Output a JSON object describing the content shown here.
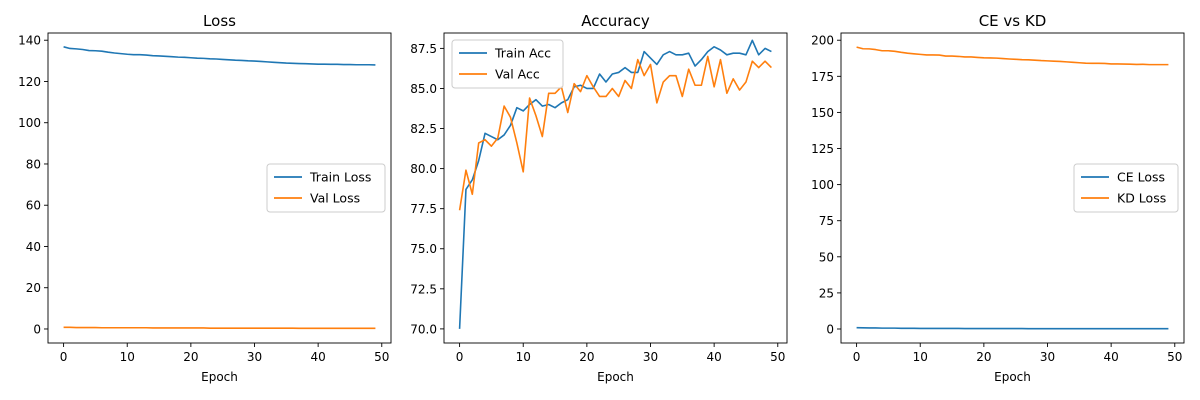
{
  "chart_data": [
    {
      "type": "line",
      "title": "Loss",
      "xlabel": "Epoch",
      "ylabel": "",
      "xlim": [
        -2.45,
        51.45
      ],
      "ylim": [
        -6.8,
        143.5
      ],
      "xticks": [
        0,
        10,
        20,
        30,
        40,
        50
      ],
      "xtick_labels": [
        "0",
        "10",
        "20",
        "30",
        "40",
        "50"
      ],
      "yticks": [
        0,
        20,
        40,
        60,
        80,
        100,
        120,
        140
      ],
      "ytick_labels": [
        "0",
        "20",
        "40",
        "60",
        "80",
        "100",
        "120",
        "140"
      ],
      "legend_placement": "center-right",
      "grid": false,
      "series": [
        {
          "name": "Train Loss",
          "color": "#1f77b4",
          "x": [
            0,
            1,
            2,
            3,
            4,
            5,
            6,
            7,
            8,
            9,
            10,
            11,
            12,
            13,
            14,
            15,
            16,
            17,
            18,
            19,
            20,
            21,
            22,
            23,
            24,
            25,
            26,
            27,
            28,
            29,
            30,
            31,
            32,
            33,
            34,
            35,
            36,
            37,
            38,
            39,
            40,
            41,
            42,
            43,
            44,
            45,
            46,
            47,
            48,
            49
          ],
          "values": [
            136.8,
            136.0,
            135.8,
            135.5,
            135.0,
            134.9,
            134.7,
            134.2,
            133.8,
            133.5,
            133.2,
            133.0,
            133.0,
            132.8,
            132.5,
            132.4,
            132.2,
            132.0,
            131.8,
            131.7,
            131.5,
            131.3,
            131.2,
            131.0,
            130.9,
            130.7,
            130.5,
            130.3,
            130.2,
            130.0,
            129.9,
            129.7,
            129.5,
            129.3,
            129.1,
            128.9,
            128.8,
            128.7,
            128.6,
            128.5,
            128.4,
            128.4,
            128.3,
            128.3,
            128.2,
            128.2,
            128.1,
            128.1,
            128.1,
            128.0
          ]
        },
        {
          "name": "Val Loss",
          "color": "#ff7f0e",
          "x": [
            0,
            1,
            2,
            3,
            4,
            5,
            6,
            7,
            8,
            9,
            10,
            11,
            12,
            13,
            14,
            15,
            16,
            17,
            18,
            19,
            20,
            21,
            22,
            23,
            24,
            25,
            26,
            27,
            28,
            29,
            30,
            31,
            32,
            33,
            34,
            35,
            36,
            37,
            38,
            39,
            40,
            41,
            42,
            43,
            44,
            45,
            46,
            47,
            48,
            49
          ],
          "values": [
            0.8,
            0.8,
            0.7,
            0.7,
            0.7,
            0.7,
            0.6,
            0.6,
            0.6,
            0.6,
            0.6,
            0.6,
            0.6,
            0.6,
            0.5,
            0.5,
            0.5,
            0.5,
            0.5,
            0.5,
            0.5,
            0.5,
            0.5,
            0.4,
            0.4,
            0.4,
            0.4,
            0.4,
            0.4,
            0.4,
            0.4,
            0.4,
            0.4,
            0.4,
            0.4,
            0.4,
            0.4,
            0.3,
            0.3,
            0.3,
            0.3,
            0.3,
            0.3,
            0.3,
            0.3,
            0.3,
            0.3,
            0.3,
            0.3,
            0.3
          ]
        }
      ]
    },
    {
      "type": "line",
      "title": "Accuracy",
      "xlabel": "Epoch",
      "ylabel": "",
      "xlim": [
        -2.45,
        51.45
      ],
      "ylim": [
        69.12,
        88.46
      ],
      "xticks": [
        0,
        10,
        20,
        30,
        40,
        50
      ],
      "xtick_labels": [
        "0",
        "10",
        "20",
        "30",
        "40",
        "50"
      ],
      "yticks": [
        70.0,
        72.5,
        75.0,
        77.5,
        80.0,
        82.5,
        85.0,
        87.5
      ],
      "ytick_labels": [
        "70.0",
        "72.5",
        "75.0",
        "77.5",
        "80.0",
        "82.5",
        "85.0",
        "87.5"
      ],
      "legend_placement": "upper-left",
      "grid": false,
      "series": [
        {
          "name": "Train Acc",
          "color": "#1f77b4",
          "x": [
            0,
            1,
            2,
            3,
            4,
            5,
            6,
            7,
            8,
            9,
            10,
            11,
            12,
            13,
            14,
            15,
            16,
            17,
            18,
            19,
            20,
            21,
            22,
            23,
            24,
            25,
            26,
            27,
            28,
            29,
            30,
            31,
            32,
            33,
            34,
            35,
            36,
            37,
            38,
            39,
            40,
            41,
            42,
            43,
            44,
            45,
            46,
            47,
            48,
            49
          ],
          "values": [
            70.0,
            78.7,
            79.3,
            80.5,
            82.2,
            82.0,
            81.8,
            82.1,
            82.7,
            83.8,
            83.6,
            84.0,
            84.3,
            83.9,
            84.0,
            83.8,
            84.1,
            84.3,
            85.1,
            85.2,
            85.0,
            85.0,
            85.9,
            85.4,
            85.9,
            86.0,
            86.3,
            86.0,
            86.0,
            87.3,
            86.9,
            86.5,
            87.1,
            87.3,
            87.1,
            87.1,
            87.2,
            86.4,
            86.8,
            87.3,
            87.6,
            87.4,
            87.1,
            87.2,
            87.2,
            87.1,
            88.0,
            87.1,
            87.5,
            87.3
          ]
        },
        {
          "name": "Val Acc",
          "color": "#ff7f0e",
          "x": [
            0,
            1,
            2,
            3,
            4,
            5,
            6,
            7,
            8,
            9,
            10,
            11,
            12,
            13,
            14,
            15,
            16,
            17,
            18,
            19,
            20,
            21,
            22,
            23,
            24,
            25,
            26,
            27,
            28,
            29,
            30,
            31,
            32,
            33,
            34,
            35,
            36,
            37,
            38,
            39,
            40,
            41,
            42,
            43,
            44,
            45,
            46,
            47,
            48,
            49
          ],
          "values": [
            77.4,
            79.9,
            78.4,
            81.6,
            81.8,
            81.4,
            81.9,
            83.9,
            83.2,
            81.6,
            79.8,
            84.4,
            83.3,
            82.0,
            84.7,
            84.7,
            85.1,
            83.5,
            85.3,
            84.8,
            85.8,
            85.1,
            84.5,
            84.5,
            85.0,
            84.5,
            85.5,
            85.0,
            86.8,
            85.8,
            86.5,
            84.1,
            85.4,
            85.8,
            85.8,
            84.5,
            86.2,
            85.2,
            85.2,
            87.0,
            85.1,
            86.8,
            84.7,
            85.6,
            84.9,
            85.4,
            86.7,
            86.3,
            86.7,
            86.3
          ]
        }
      ]
    },
    {
      "type": "line",
      "title": "CE vs KD",
      "xlabel": "Epoch",
      "ylabel": "",
      "xlim": [
        -2.45,
        51.45
      ],
      "ylim": [
        -9.7,
        205.0
      ],
      "xticks": [
        0,
        10,
        20,
        30,
        40,
        50
      ],
      "xtick_labels": [
        "0",
        "10",
        "20",
        "30",
        "40",
        "50"
      ],
      "yticks": [
        0,
        25,
        50,
        75,
        100,
        125,
        150,
        175,
        200
      ],
      "ytick_labels": [
        "0",
        "25",
        "50",
        "75",
        "100",
        "125",
        "150",
        "175",
        "200"
      ],
      "legend_placement": "center-right",
      "grid": false,
      "series": [
        {
          "name": "CE Loss",
          "color": "#1f77b4",
          "x": [
            0,
            1,
            2,
            3,
            4,
            5,
            6,
            7,
            8,
            9,
            10,
            11,
            12,
            13,
            14,
            15,
            16,
            17,
            18,
            19,
            20,
            21,
            22,
            23,
            24,
            25,
            26,
            27,
            28,
            29,
            30,
            31,
            32,
            33,
            34,
            35,
            36,
            37,
            38,
            39,
            40,
            41,
            42,
            43,
            44,
            45,
            46,
            47,
            48,
            49
          ],
          "values": [
            0.9,
            0.8,
            0.7,
            0.7,
            0.6,
            0.6,
            0.6,
            0.5,
            0.5,
            0.5,
            0.4,
            0.4,
            0.4,
            0.4,
            0.4,
            0.4,
            0.4,
            0.3,
            0.3,
            0.3,
            0.3,
            0.3,
            0.3,
            0.3,
            0.3,
            0.3,
            0.3,
            0.2,
            0.2,
            0.2,
            0.2,
            0.2,
            0.2,
            0.2,
            0.2,
            0.2,
            0.2,
            0.2,
            0.2,
            0.2,
            0.2,
            0.2,
            0.2,
            0.2,
            0.2,
            0.2,
            0.2,
            0.2,
            0.2,
            0.2
          ]
        },
        {
          "name": "KD Loss",
          "color": "#ff7f0e",
          "x": [
            0,
            1,
            2,
            3,
            4,
            5,
            6,
            7,
            8,
            9,
            10,
            11,
            12,
            13,
            14,
            15,
            16,
            17,
            18,
            19,
            20,
            21,
            22,
            23,
            24,
            25,
            26,
            27,
            28,
            29,
            30,
            31,
            32,
            33,
            34,
            35,
            36,
            37,
            38,
            39,
            40,
            41,
            42,
            43,
            44,
            45,
            46,
            47,
            48,
            49
          ],
          "values": [
            195.2,
            194.1,
            194.0,
            193.5,
            192.7,
            192.7,
            192.3,
            191.6,
            191.0,
            190.6,
            190.2,
            189.8,
            189.8,
            189.7,
            189.0,
            189.0,
            188.8,
            188.4,
            188.4,
            188.1,
            187.8,
            187.7,
            187.6,
            187.3,
            187.0,
            186.8,
            186.5,
            186.4,
            186.2,
            185.9,
            185.7,
            185.5,
            185.3,
            185.0,
            184.7,
            184.4,
            184.1,
            184.0,
            184.0,
            183.9,
            183.6,
            183.6,
            183.5,
            183.4,
            183.2,
            183.3,
            183.1,
            183.1,
            183.1,
            183.1
          ]
        }
      ]
    }
  ]
}
